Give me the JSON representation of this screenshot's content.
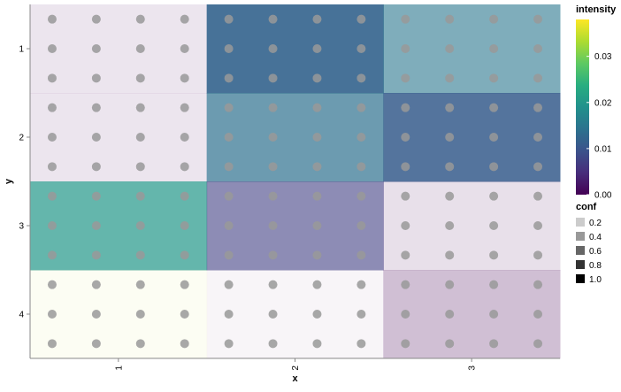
{
  "chart_data": {
    "type": "heatmap",
    "title": "",
    "xlabel": "x",
    "ylabel": "y",
    "x_categories": [
      "1",
      "2",
      "3"
    ],
    "y_categories": [
      "1",
      "2",
      "3",
      "4"
    ],
    "cells": [
      {
        "x": "1",
        "y": "1",
        "intensity": 0.0,
        "conf": 0.1
      },
      {
        "x": "2",
        "y": "1",
        "intensity": 0.012,
        "conf": 0.9
      },
      {
        "x": "3",
        "y": "1",
        "intensity": 0.015,
        "conf": 0.6
      },
      {
        "x": "1",
        "y": "2",
        "intensity": 0.0,
        "conf": 0.1
      },
      {
        "x": "2",
        "y": "2",
        "intensity": 0.014,
        "conf": 0.7
      },
      {
        "x": "3",
        "y": "2",
        "intensity": 0.011,
        "conf": 0.85
      },
      {
        "x": "1",
        "y": "3",
        "intensity": 0.02,
        "conf": 0.7
      },
      {
        "x": "2",
        "y": "3",
        "intensity": 0.007,
        "conf": 0.6
      },
      {
        "x": "3",
        "y": "3",
        "intensity": 0.0,
        "conf": 0.12
      },
      {
        "x": "1",
        "y": "4",
        "intensity": 0.035,
        "conf": 0.06
      },
      {
        "x": "2",
        "y": "4",
        "intensity": 0.0,
        "conf": 0.04
      },
      {
        "x": "3",
        "y": "4",
        "intensity": 0.0,
        "conf": 0.25
      }
    ],
    "points_per_cell": {
      "cols": 4,
      "rows": 3
    },
    "point_color": "#999999",
    "grid": false,
    "legend_placement": "right",
    "legends": {
      "intensity": {
        "title": "intensity",
        "domain": [
          0,
          0.038
        ],
        "ticks": [
          {
            "value": 0.0,
            "label": "0.00"
          },
          {
            "value": 0.01,
            "label": "0.01"
          },
          {
            "value": 0.02,
            "label": "0.02"
          },
          {
            "value": 0.03,
            "label": "0.03"
          }
        ],
        "scheme": "viridis"
      },
      "conf": {
        "title": "conf",
        "entries": [
          {
            "value": 0.2,
            "label": "0.2"
          },
          {
            "value": 0.4,
            "label": "0.4"
          },
          {
            "value": 0.6,
            "label": "0.6"
          },
          {
            "value": 0.8,
            "label": "0.8"
          },
          {
            "value": 1.0,
            "label": "1.0"
          }
        ]
      }
    }
  }
}
